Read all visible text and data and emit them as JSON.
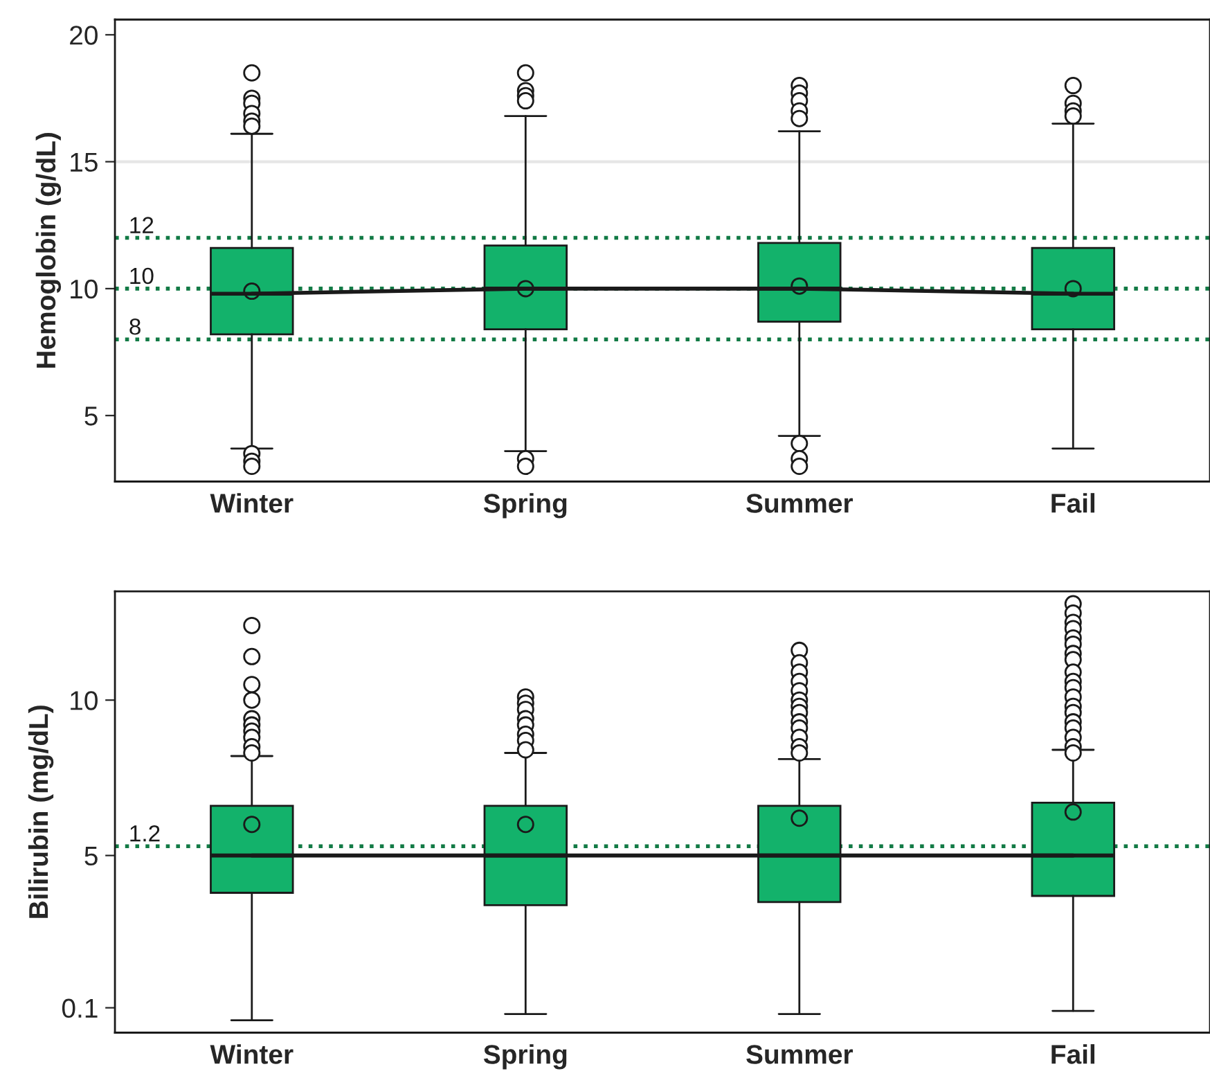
{
  "chart_data": [
    {
      "type": "box",
      "ylabel": "Hemoglobin (g/dL)",
      "categories": [
        "Winter",
        "Spring",
        "Summer",
        "Fail"
      ],
      "color": "#13b26b",
      "ylim": [
        2.4,
        20.6
      ],
      "yticks": [
        5,
        10,
        15,
        20
      ],
      "grid": false,
      "boxes": [
        {
          "low": 3.7,
          "q1": 8.2,
          "median": 9.8,
          "q3": 11.6,
          "high": 16.1,
          "mean": 9.9,
          "outliers": [
            18.5,
            17.5,
            17.3,
            16.9,
            16.6,
            16.4,
            3.5,
            3.2,
            3.0
          ]
        },
        {
          "low": 3.6,
          "q1": 8.4,
          "median": 10.0,
          "q3": 11.7,
          "high": 16.8,
          "mean": 10.0,
          "outliers": [
            18.5,
            17.8,
            17.6,
            17.4,
            3.3,
            3.0
          ]
        },
        {
          "low": 4.2,
          "q1": 8.7,
          "median": 10.0,
          "q3": 11.8,
          "high": 16.2,
          "mean": 10.1,
          "outliers": [
            18.0,
            17.7,
            17.4,
            17.0,
            16.7,
            3.9,
            3.3,
            3.0
          ]
        },
        {
          "low": 3.7,
          "q1": 8.4,
          "median": 9.8,
          "q3": 11.6,
          "high": 16.5,
          "mean": 10.0,
          "outliers": [
            18.0,
            17.3,
            17.0,
            16.8
          ]
        }
      ],
      "series": [
        {
          "type": "line",
          "color": "#1a1a1a",
          "values": [
            9.8,
            10.0,
            10.0,
            9.8
          ]
        }
      ],
      "ref_lines": [
        {
          "axis": "y",
          "value": 15,
          "label": null,
          "color": "#e6e6e6",
          "line_style": "solid"
        },
        {
          "axis": "y",
          "value": 12,
          "label": "12",
          "color": "#127a45",
          "line_style": "dotted"
        },
        {
          "axis": "y",
          "value": 10,
          "label": "10",
          "color": "#127a45",
          "line_style": "dotted"
        },
        {
          "axis": "y",
          "value": 8,
          "label": "8",
          "color": "#127a45",
          "line_style": "dotted"
        }
      ]
    },
    {
      "type": "box",
      "ylabel": "Bilirubin (mg/dL)",
      "categories": [
        "Winter",
        "Spring",
        "Summer",
        "Fail"
      ],
      "color": "#13b26b",
      "ylim": [
        -0.7,
        13.5
      ],
      "yticks": [
        0.1,
        5,
        10
      ],
      "grid": false,
      "boxes": [
        {
          "low": -0.3,
          "q1": 3.8,
          "median": 5.0,
          "q3": 6.6,
          "high": 8.2,
          "mean": 6.0,
          "outliers": [
            12.4,
            11.4,
            10.5,
            10.0,
            9.4,
            9.2,
            9.0,
            8.8,
            8.5,
            8.3
          ]
        },
        {
          "low": -0.1,
          "q1": 3.4,
          "median": 5.0,
          "q3": 6.6,
          "high": 8.3,
          "mean": 6.0,
          "outliers": [
            10.1,
            9.9,
            9.7,
            9.4,
            9.2,
            8.9,
            8.7,
            8.4
          ]
        },
        {
          "low": -0.1,
          "q1": 3.5,
          "median": 5.0,
          "q3": 6.6,
          "high": 8.1,
          "mean": 6.2,
          "outliers": [
            11.6,
            11.2,
            10.9,
            10.6,
            10.3,
            10.0,
            9.8,
            9.6,
            9.3,
            9.1,
            8.8,
            8.5,
            8.3
          ]
        },
        {
          "low": 0.0,
          "q1": 3.7,
          "median": 5.0,
          "q3": 6.7,
          "high": 8.4,
          "mean": 6.4,
          "outliers": [
            13.1,
            12.8,
            12.5,
            12.3,
            12.0,
            11.8,
            11.5,
            11.3,
            10.9,
            10.6,
            10.4,
            10.1,
            9.8,
            9.6,
            9.3,
            9.1,
            8.8,
            8.5,
            8.3
          ]
        }
      ],
      "series": [
        {
          "type": "line",
          "color": "#1a1a1a",
          "values": [
            5.0,
            5.0,
            5.0,
            5.0
          ]
        }
      ],
      "ref_lines": [
        {
          "axis": "y",
          "value": 5.3,
          "label": null,
          "color": "#127a45",
          "line_style": "dotted"
        }
      ],
      "annotations": [
        {
          "text": "1.2",
          "y": 5.3
        }
      ]
    }
  ]
}
